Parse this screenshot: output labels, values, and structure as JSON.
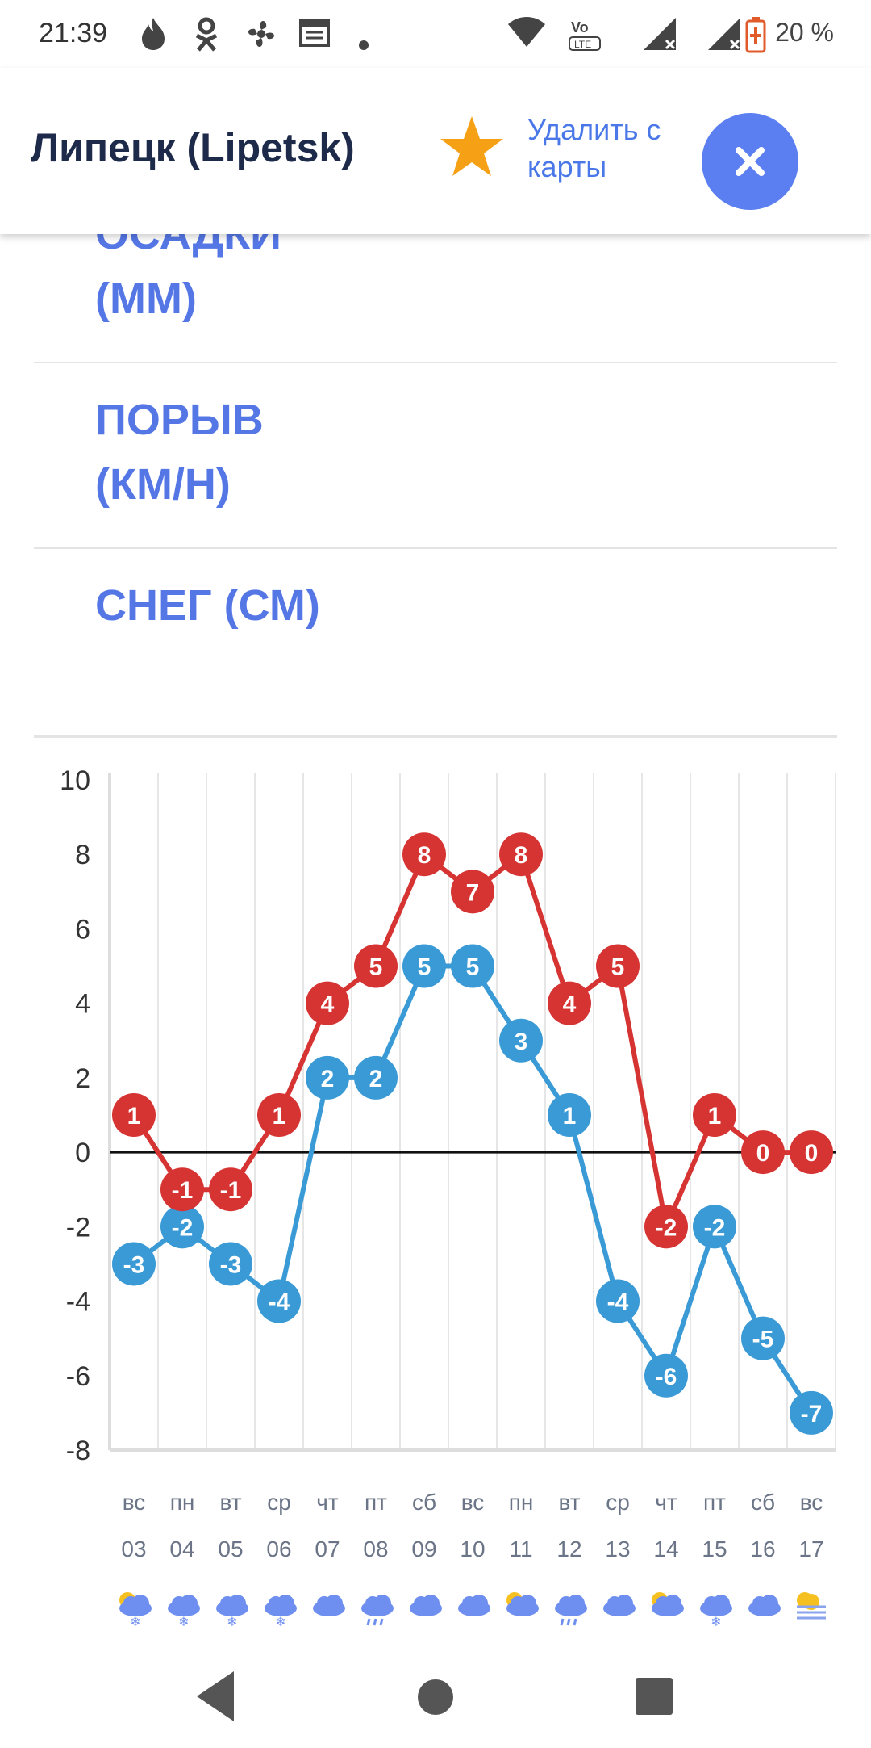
{
  "status_bar": {
    "time": "21:39",
    "battery": "20 %"
  },
  "header": {
    "city": "Липецк (Lipetsk)",
    "remove_label": "Удалить с карты",
    "close_icon": "close-icon",
    "star_icon": "star-icon"
  },
  "sections": [
    {
      "label": "ОСАДКИ (ММ)"
    },
    {
      "label": "ПОРЫВ (КМ/Н)"
    },
    {
      "label": "СНЕГ (СМ)"
    }
  ],
  "colors": {
    "accent": "#5577e6",
    "high": "#d63333",
    "low": "#3a9ad6"
  },
  "chart_data": {
    "type": "line",
    "ylim": [
      -8,
      10
    ],
    "yticks": [
      10,
      8,
      6,
      4,
      2,
      0,
      -2,
      -4,
      -6,
      -8
    ],
    "days": [
      "вс",
      "пн",
      "вт",
      "ср",
      "чт",
      "пт",
      "сб",
      "вс",
      "пн",
      "вт",
      "ср",
      "чт",
      "пт",
      "сб",
      "вс"
    ],
    "dates": [
      "03",
      "04",
      "05",
      "06",
      "07",
      "08",
      "09",
      "10",
      "11",
      "12",
      "13",
      "14",
      "15",
      "16",
      "17"
    ],
    "weather_icons": [
      "sun-cloud-snow-icon",
      "cloud-snow-icon",
      "cloud-snow-icon",
      "cloud-snow-icon",
      "cloud-icon",
      "cloud-rain-icon",
      "cloud-icon",
      "cloud-icon",
      "sun-cloud-icon",
      "cloud-rain-icon",
      "cloud-icon",
      "sun-cloud-icon",
      "cloud-snow-icon",
      "cloud-icon",
      "sun-fog-icon"
    ],
    "series": [
      {
        "values": [
          1,
          -1,
          -1,
          1,
          4,
          5,
          8,
          7,
          8,
          4,
          5,
          -2,
          1,
          0,
          0
        ]
      },
      {
        "values": [
          -3,
          -2,
          -3,
          -4,
          2,
          2,
          5,
          5,
          3,
          1,
          -4,
          -6,
          -2,
          -5,
          -7
        ]
      }
    ]
  }
}
